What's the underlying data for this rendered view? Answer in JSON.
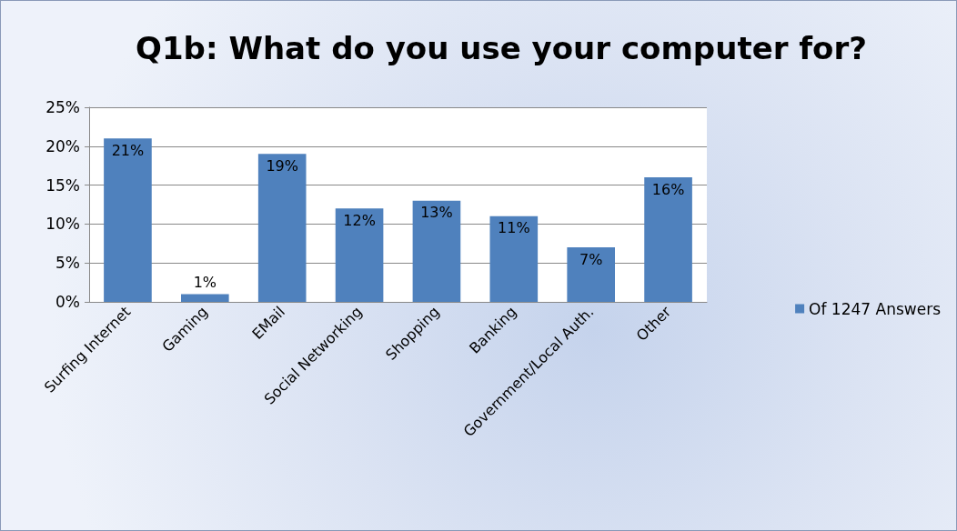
{
  "chart_data": {
    "type": "bar",
    "title": "Q1b: What do you use your computer for?",
    "categories": [
      "Surfing Internet",
      "Gaming",
      "EMail",
      "Social Networking",
      "Shopping",
      "Banking",
      "Government/Local Auth.",
      "Other"
    ],
    "series": [
      {
        "name": "Of 1247 Answers",
        "color": "#4f81bd",
        "values": [
          21,
          1,
          19,
          12,
          13,
          11,
          7,
          16
        ],
        "value_labels": [
          "21%",
          "1%",
          "19%",
          "12%",
          "13%",
          "11%",
          "7%",
          "16%"
        ]
      }
    ],
    "ylim": [
      0,
      25
    ],
    "yticks": [
      {
        "value": 0,
        "label": "0%"
      },
      {
        "value": 5,
        "label": "5%"
      },
      {
        "value": 10,
        "label": "10%"
      },
      {
        "value": 15,
        "label": "15%"
      },
      {
        "value": 20,
        "label": "20%"
      },
      {
        "value": 25,
        "label": "25%"
      }
    ],
    "grid": "y",
    "legend": "right"
  }
}
